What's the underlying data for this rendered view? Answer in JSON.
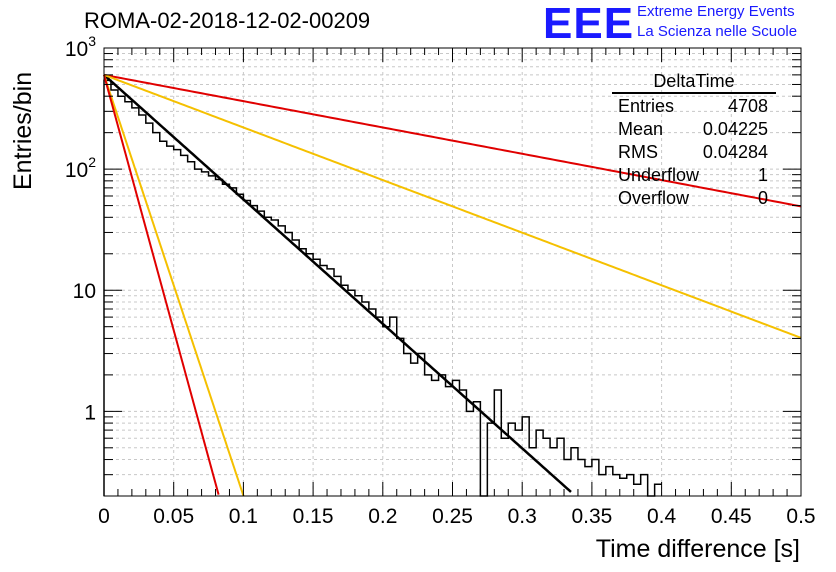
{
  "header": {
    "run_title": "ROMA-02-2018-12-02-00209",
    "logo_text": "EEE",
    "logo_line1": "Extreme Energy Events",
    "logo_line2": "La Scienza nelle Scuole",
    "logo_color": "#1a1aff"
  },
  "stats_box": {
    "title": "DeltaTime",
    "rows": [
      {
        "label": "Entries",
        "value": "4708"
      },
      {
        "label": "Mean",
        "value": "0.04225"
      },
      {
        "label": "RMS",
        "value": "0.04284"
      },
      {
        "label": "Underflow",
        "value": "1"
      },
      {
        "label": "Overflow",
        "value": "0"
      }
    ]
  },
  "chart_data": {
    "type": "line",
    "title": "ROMA-02-2018-12-02-00209",
    "xlabel": "Time difference [s]",
    "ylabel": "Entries/bin",
    "xlim": [
      0,
      0.5
    ],
    "ylim": [
      0.2,
      1000
    ],
    "yscale": "log",
    "grid": true,
    "x_tick_labels": [
      "0",
      "0.05",
      "0.1",
      "0.15",
      "0.2",
      "0.25",
      "0.3",
      "0.35",
      "0.4",
      "0.45",
      "0.5"
    ],
    "y_tick_labels": [
      {
        "value": 1,
        "label": "1"
      },
      {
        "value": 10,
        "label": "10"
      },
      {
        "value": 100,
        "base": "10",
        "exp": "2"
      },
      {
        "value": 1000,
        "base": "10",
        "exp": "3"
      }
    ],
    "histogram": {
      "bin_width": 0.005,
      "x_start": 0,
      "counts": [
        540,
        450,
        400,
        360,
        320,
        280,
        240,
        200,
        170,
        155,
        145,
        130,
        115,
        100,
        95,
        88,
        82,
        75,
        70,
        62,
        55,
        50,
        45,
        40,
        38,
        34,
        30,
        26,
        22,
        20,
        18,
        16,
        15,
        13,
        11,
        10,
        9,
        8,
        7,
        6,
        5,
        6,
        4,
        3,
        2.5,
        3,
        2,
        1.8,
        2,
        1.6,
        1.8,
        1.5,
        1,
        1.2,
        0,
        0.8,
        1.5,
        0.6,
        0.8,
        0.7,
        0.9,
        0.5,
        0.7,
        0.6,
        0.5,
        0.6,
        0.4,
        0.5,
        0.4,
        0.35,
        0.4,
        0.3,
        0.35,
        0.3,
        0.28,
        0.3,
        0.25,
        0.3,
        0.2,
        0.25
      ],
      "note_hist": "stepped black histogram"
    },
    "series": [
      {
        "kind": "fit",
        "color": "#000000",
        "amplitude": 600,
        "tau": 0.04225,
        "x_range": [
          0,
          0.335
        ]
      },
      {
        "kind": "ref-upper",
        "color": "#e00000",
        "amplitude": 600,
        "tau": 0.2,
        "x_range": [
          0,
          0.5
        ]
      },
      {
        "kind": "ref-upper",
        "color": "#f5c000",
        "amplitude": 600,
        "tau": 0.1,
        "x_range": [
          0,
          0.5
        ]
      },
      {
        "kind": "ref-lower",
        "color": "#f5c000",
        "amplitude": 600,
        "tau": 0.0125,
        "x_range": [
          0,
          0.12
        ]
      },
      {
        "kind": "ref-lower",
        "color": "#e00000",
        "amplitude": 600,
        "tau": 0.0103,
        "x_range": [
          0,
          0.12
        ]
      }
    ]
  }
}
